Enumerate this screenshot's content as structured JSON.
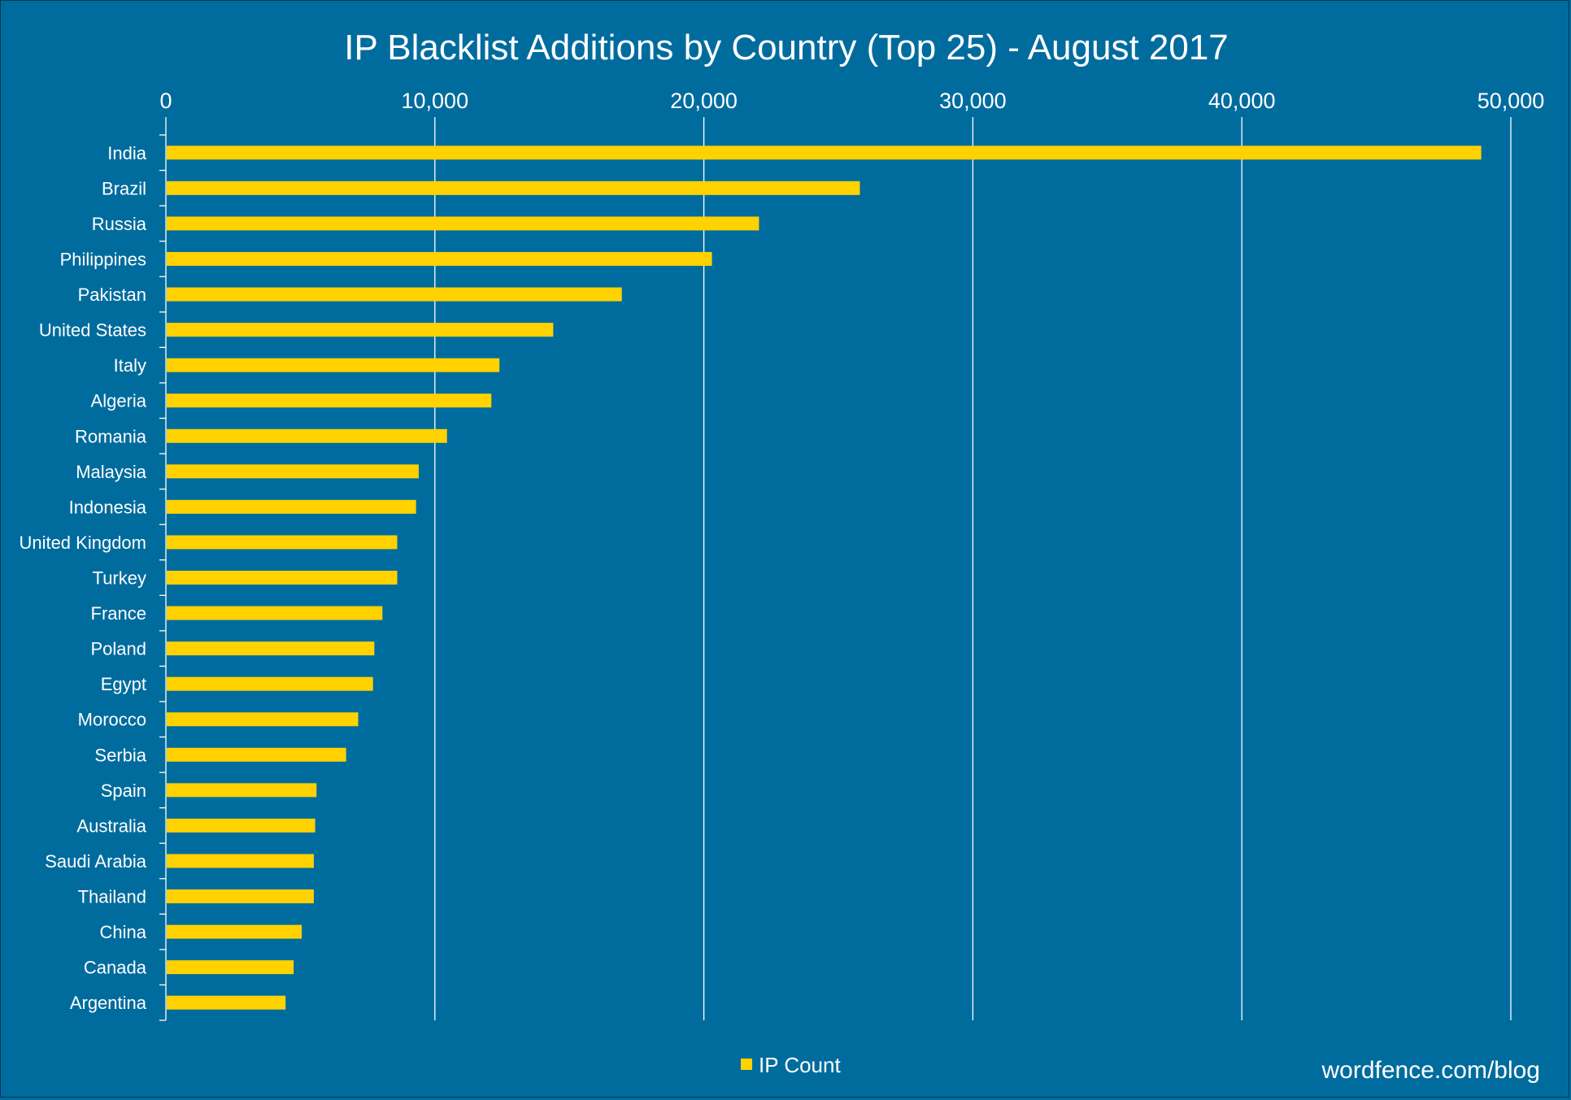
{
  "chart_data": {
    "type": "bar",
    "orientation": "horizontal",
    "title": "IP Blacklist Additions by Country (Top 25) - August 2017",
    "xlabel": "",
    "ylabel": "",
    "xlim": [
      0,
      50000
    ],
    "x_ticks": [
      0,
      10000,
      20000,
      30000,
      40000,
      50000
    ],
    "x_tick_labels": [
      "0",
      "10,000",
      "20,000",
      "30,000",
      "40,000",
      "50,000"
    ],
    "x_axis_position": "top",
    "grid": true,
    "legend_position": "bottom-center",
    "categories": [
      "India",
      "Brazil",
      "Russia",
      "Philippines",
      "Pakistan",
      "United States",
      "Italy",
      "Algeria",
      "Romania",
      "Malaysia",
      "Indonesia",
      "United Kingdom",
      "Turkey",
      "France",
      "Poland",
      "Egypt",
      "Morocco",
      "Serbia",
      "Spain",
      "Australia",
      "Saudi Arabia",
      "Thailand",
      "China",
      "Canada",
      "Argentina"
    ],
    "series": [
      {
        "name": "IP Count",
        "color": "#ffd200",
        "values": [
          48900,
          25800,
          22050,
          20300,
          16950,
          14400,
          12400,
          12100,
          10450,
          9400,
          9300,
          8600,
          8600,
          8050,
          7750,
          7700,
          7150,
          6700,
          5600,
          5550,
          5500,
          5500,
          5050,
          4750,
          4450
        ]
      }
    ]
  },
  "source_note": "wordfence.com/blog",
  "colors": {
    "background": "#006c9e",
    "bar": "#ffd200",
    "text": "#ffffff",
    "grid": "#ffffff"
  }
}
